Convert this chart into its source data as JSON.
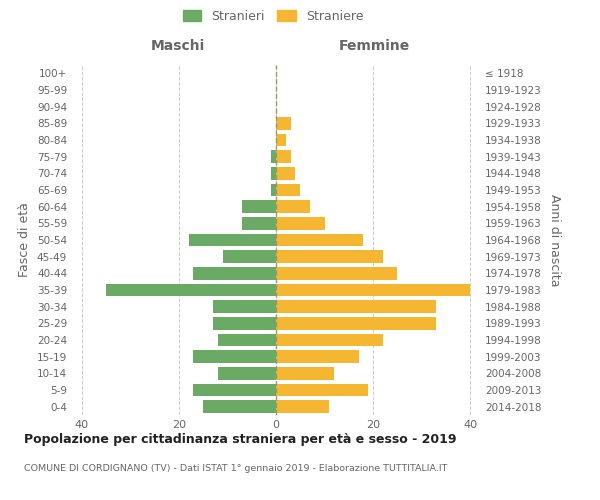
{
  "age_groups": [
    "0-4",
    "5-9",
    "10-14",
    "15-19",
    "20-24",
    "25-29",
    "30-34",
    "35-39",
    "40-44",
    "45-49",
    "50-54",
    "55-59",
    "60-64",
    "65-69",
    "70-74",
    "75-79",
    "80-84",
    "85-89",
    "90-94",
    "95-99",
    "100+"
  ],
  "birth_years": [
    "2014-2018",
    "2009-2013",
    "2004-2008",
    "1999-2003",
    "1994-1998",
    "1989-1993",
    "1984-1988",
    "1979-1983",
    "1974-1978",
    "1969-1973",
    "1964-1968",
    "1959-1963",
    "1954-1958",
    "1949-1953",
    "1944-1948",
    "1939-1943",
    "1934-1938",
    "1929-1933",
    "1924-1928",
    "1919-1923",
    "≤ 1918"
  ],
  "maschi": [
    15,
    17,
    12,
    17,
    12,
    13,
    13,
    35,
    17,
    11,
    18,
    7,
    7,
    1,
    1,
    1,
    0,
    0,
    0,
    0,
    0
  ],
  "femmine": [
    11,
    19,
    12,
    17,
    22,
    33,
    33,
    40,
    25,
    22,
    18,
    10,
    7,
    5,
    4,
    3,
    2,
    3,
    0,
    0,
    0
  ],
  "maschi_color": "#6aaa64",
  "femmine_color": "#f5b731",
  "bar_height": 0.75,
  "xlim": 42,
  "title": "Popolazione per cittadinanza straniera per età e sesso - 2019",
  "subtitle": "COMUNE DI CORDIGNANO (TV) - Dati ISTAT 1° gennaio 2019 - Elaborazione TUTTITALIA.IT",
  "ylabel_left": "Fasce di età",
  "ylabel_right": "Anni di nascita",
  "xlabel_left": "Maschi",
  "xlabel_right": "Femmine",
  "legend_stranieri": "Stranieri",
  "legend_straniere": "Straniere",
  "background_color": "#ffffff",
  "grid_color": "#cccccc",
  "text_color": "#666666"
}
